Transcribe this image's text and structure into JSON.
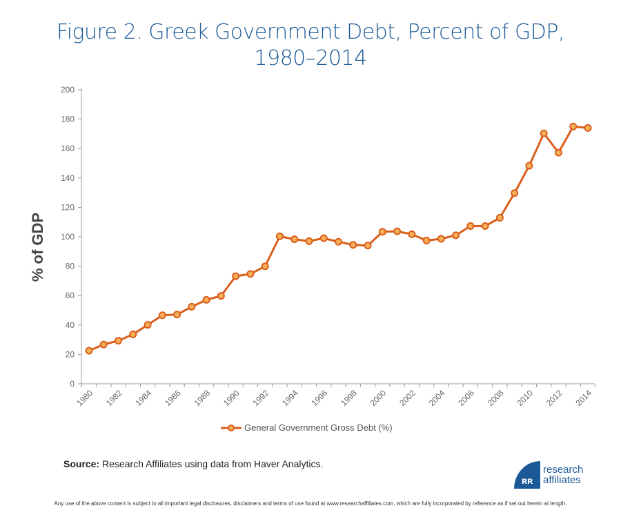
{
  "chart_data": {
    "type": "line",
    "title": "Figure 2. Greek Government Debt, Percent of GDP, 1980–2014",
    "title_lines": [
      "Figure 2. Greek Government Debt, Percent of GDP,",
      "1980–2014"
    ],
    "xlabel": "",
    "ylabel": "% of GDP",
    "ylim": [
      0,
      200
    ],
    "yticks": [
      0,
      20,
      40,
      60,
      80,
      100,
      120,
      140,
      160,
      180,
      200
    ],
    "xticks": [
      "1980",
      "1982",
      "1984",
      "1986",
      "1988",
      "1990",
      "1992",
      "1994",
      "1996",
      "1998",
      "2000",
      "2002",
      "2004",
      "2006",
      "2008",
      "2010",
      "2012",
      "2014"
    ],
    "grid": false,
    "legend_position": "bottom",
    "x": [
      1980,
      1981,
      1982,
      1983,
      1984,
      1985,
      1986,
      1987,
      1988,
      1989,
      1990,
      1991,
      1992,
      1993,
      1994,
      1995,
      1996,
      1997,
      1998,
      1999,
      2000,
      2001,
      2002,
      2003,
      2004,
      2005,
      2006,
      2007,
      2008,
      2009,
      2010,
      2011,
      2012,
      2013,
      2014
    ],
    "series": [
      {
        "name": "General Government Gross Debt (%)",
        "color": "#d95f1a",
        "marker_fill": "#f7b05a",
        "values": [
          22.5,
          26.7,
          29.3,
          33.6,
          40.1,
          46.6,
          47.1,
          52.4,
          57.1,
          59.8,
          73.2,
          74.7,
          79.9,
          100.3,
          98.3,
          97.0,
          99.0,
          96.6,
          94.5,
          94.0,
          103.4,
          103.7,
          101.7,
          97.4,
          98.6,
          101.0,
          107.3,
          107.3,
          112.9,
          129.7,
          148.3,
          170.3,
          157.2,
          175.0,
          174.0
        ]
      }
    ]
  },
  "source": {
    "label": "Source:",
    "text": " Research Affiliates using data from Haver Analytics."
  },
  "logo": {
    "mark": "ᴙᴙ",
    "line1": "research",
    "line2": "affiliates"
  },
  "disclaimer": "Any use of the above content is subject to all important legal disclosures, disclaimers and terms of use found at www.researchaffiliates.com, which are fully incorporated by reference as if set out herein at length."
}
